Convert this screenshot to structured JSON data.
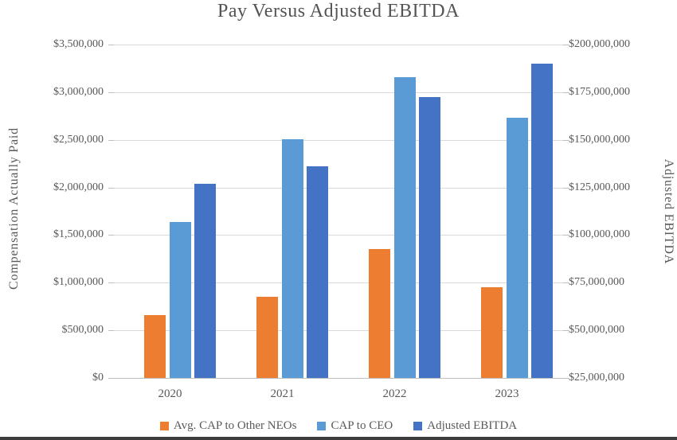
{
  "chart_data": {
    "type": "bar",
    "title": "Pay Versus Adjusted EBITDA",
    "categories": [
      "2020",
      "2021",
      "2022",
      "2023"
    ],
    "series": [
      {
        "name": "Avg. CAP to Other NEOs",
        "axis": "left",
        "color": "#ED7D31",
        "values": [
          660000,
          850000,
          1350000,
          950000
        ]
      },
      {
        "name": "CAP to CEO",
        "axis": "left",
        "color": "#5B9BD5",
        "values": [
          1640000,
          2510000,
          3160000,
          2730000
        ]
      },
      {
        "name": "Adjusted EBITDA",
        "axis": "right",
        "color": "#4472C4",
        "values": [
          127000000,
          136000000,
          172500000,
          190000000
        ]
      }
    ],
    "left_axis": {
      "title": "Compensation Actually Paid",
      "min": 0,
      "max": 3500000,
      "tick_labels": [
        "$3,500,000",
        "$3,000,000",
        "$2,500,000",
        "$2,000,000",
        "$1,500,000",
        "$1,000,000",
        "$500,000",
        "$0"
      ]
    },
    "right_axis": {
      "title": "Adjusted EBITDA",
      "min": 25000000,
      "max": 200000000,
      "tick_labels": [
        "$200,000,000",
        "$175,000,000",
        "$150,000,000",
        "$125,000,000",
        "$100,000,000",
        "$75,000,000",
        "$50,000,000",
        "$25,000,000"
      ]
    },
    "grid": true,
    "legend_position": "bottom"
  },
  "colors": {
    "text": "#595959",
    "title_text": "#545454",
    "gridline": "#D9D9D9",
    "axis_line": "#BFBFBF",
    "background": "#FFFFFF",
    "bottom_strip": "#3C3C3C"
  }
}
